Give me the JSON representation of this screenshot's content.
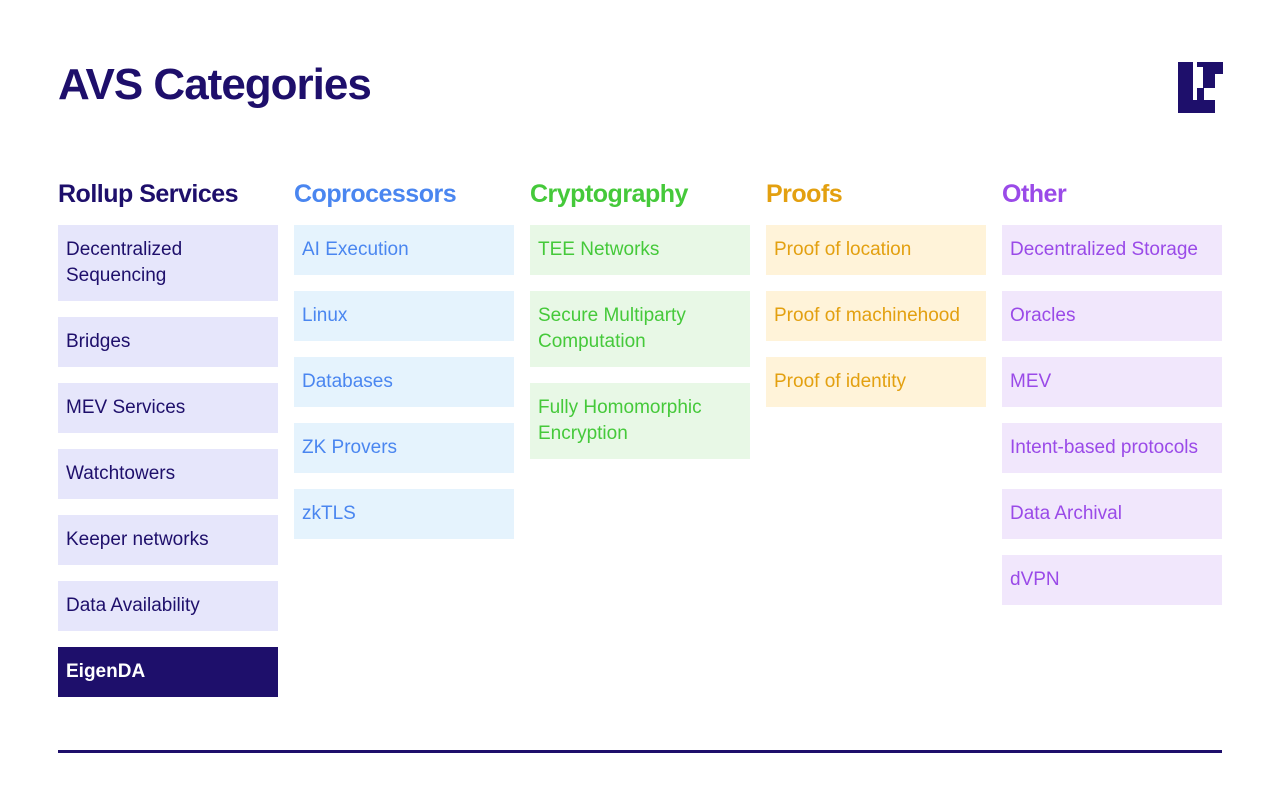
{
  "title": "AVS Categories",
  "logo_icon": "eigen-logo",
  "columns": [
    {
      "heading": "Rollup Services",
      "color": "#1e0f6b",
      "bg": "#e6e6fb",
      "items": [
        "Decentralized Sequencing",
        "Bridges",
        "MEV Services",
        "Watchtowers",
        "Keeper networks",
        "Data Availability",
        "EigenDA"
      ],
      "highlighted": "EigenDA"
    },
    {
      "heading": "Coprocessors",
      "color": "#4a86f0",
      "bg": "#e5f3fd",
      "items": [
        "AI Execution",
        "Linux",
        "Databases",
        "ZK Provers",
        "zkTLS"
      ]
    },
    {
      "heading": "Cryptography",
      "color": "#45c93a",
      "bg": "#e8f8e6",
      "items": [
        "TEE Networks",
        "Secure Multiparty Computation",
        "Fully Homomorphic Encryption"
      ]
    },
    {
      "heading": "Proofs",
      "color": "#e3a010",
      "bg": "#fff3d9",
      "items": [
        "Proof of location",
        "Proof of machinehood",
        "Proof of identity"
      ]
    },
    {
      "heading": "Other",
      "color": "#9a4ae8",
      "bg": "#f1e7fc",
      "items": [
        "Decentralized Storage",
        "Oracles",
        "MEV",
        "Intent-based protocols",
        "Data Archival",
        "dVPN"
      ]
    }
  ]
}
